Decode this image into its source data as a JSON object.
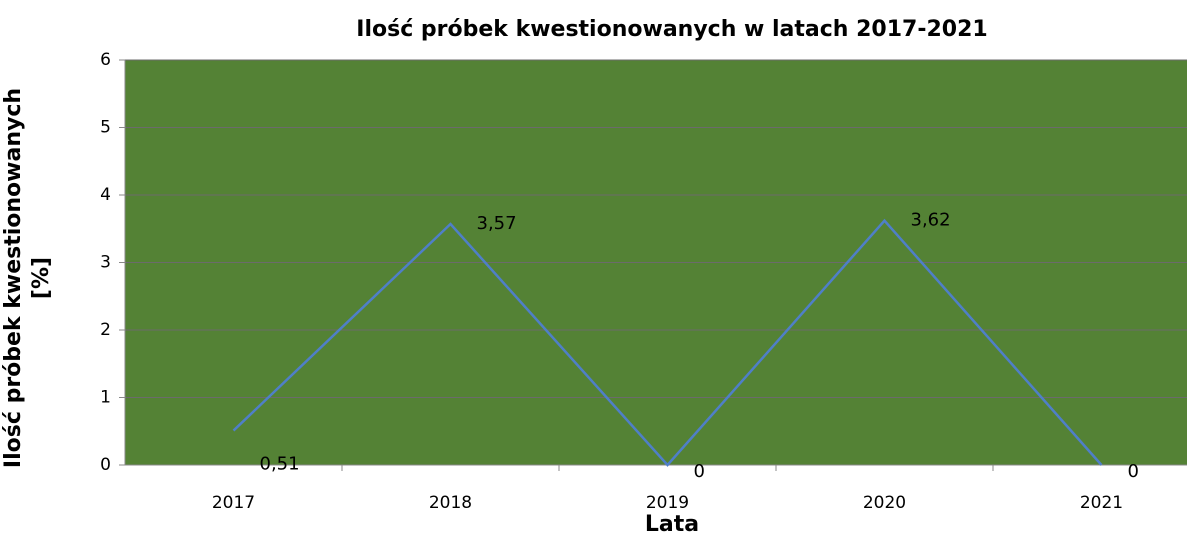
{
  "chart_data": {
    "type": "line",
    "title": "Ilość próbek kwestionowanych w latach 2017-2021",
    "x_label": "Lata",
    "y_label": "Ilość próbek kwestionowanych [%]",
    "categories": [
      "2017",
      "2018",
      "2019",
      "2020",
      "2021"
    ],
    "series": [
      {
        "name": "Ilość próbek kwestionowanych",
        "color": "#4f7fc8",
        "values": [
          0.51,
          3.57,
          0,
          3.62,
          0
        ],
        "value_labels": [
          "0,51",
          "3,57",
          "0",
          "3,62",
          "0"
        ]
      }
    ],
    "ylim": [
      0,
      6
    ],
    "yticks": [
      0,
      1,
      2,
      3,
      4,
      5,
      6
    ],
    "grid": true,
    "plot_background": "#548235"
  }
}
